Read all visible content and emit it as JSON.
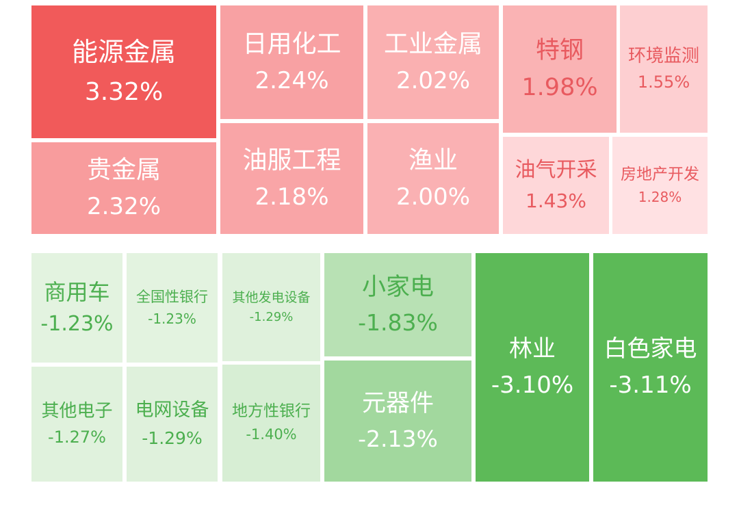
{
  "chart_data": {
    "type": "heatmap",
    "groups": [
      {
        "name": "gainers",
        "items": [
          {
            "name": "能源金属",
            "value": 3.32,
            "label": "3.32%"
          },
          {
            "name": "贵金属",
            "value": 2.32,
            "label": "2.32%"
          },
          {
            "name": "日用化工",
            "value": 2.24,
            "label": "2.24%"
          },
          {
            "name": "油服工程",
            "value": 2.18,
            "label": "2.18%"
          },
          {
            "name": "工业金属",
            "value": 2.02,
            "label": "2.02%"
          },
          {
            "name": "渔业",
            "value": 2.0,
            "label": "2.00%"
          },
          {
            "name": "特钢",
            "value": 1.98,
            "label": "1.98%"
          },
          {
            "name": "环境监测",
            "value": 1.55,
            "label": "1.55%"
          },
          {
            "name": "油气开采",
            "value": 1.43,
            "label": "1.43%"
          },
          {
            "name": "房地产开发",
            "value": 1.28,
            "label": "1.28%"
          }
        ]
      },
      {
        "name": "losers",
        "items": [
          {
            "name": "商用车",
            "value": -1.23,
            "label": "-1.23%"
          },
          {
            "name": "全国性银行",
            "value": -1.23,
            "label": "-1.23%"
          },
          {
            "name": "其他发电设备",
            "value": -1.29,
            "label": "-1.29%"
          },
          {
            "name": "其他电子",
            "value": -1.27,
            "label": "-1.27%"
          },
          {
            "name": "电网设备",
            "value": -1.29,
            "label": "-1.29%"
          },
          {
            "name": "地方性银行",
            "value": -1.4,
            "label": "-1.40%"
          },
          {
            "name": "小家电",
            "value": -1.83,
            "label": "-1.83%"
          },
          {
            "name": "元器件",
            "value": -2.13,
            "label": "-2.13%"
          },
          {
            "name": "林业",
            "value": -3.1,
            "label": "-3.10%"
          },
          {
            "name": "白色家电",
            "value": -3.11,
            "label": "-3.11%"
          }
        ]
      }
    ],
    "colors": {
      "up_dark": "#f15a5a",
      "up_light": "#ffe1e3",
      "down_dark": "#5cba57",
      "down_light": "#e3f3e0",
      "text_on_dark": "#ffffff",
      "text_up_light": "#e85a5f",
      "text_down_light": "#4caf4f"
    }
  }
}
